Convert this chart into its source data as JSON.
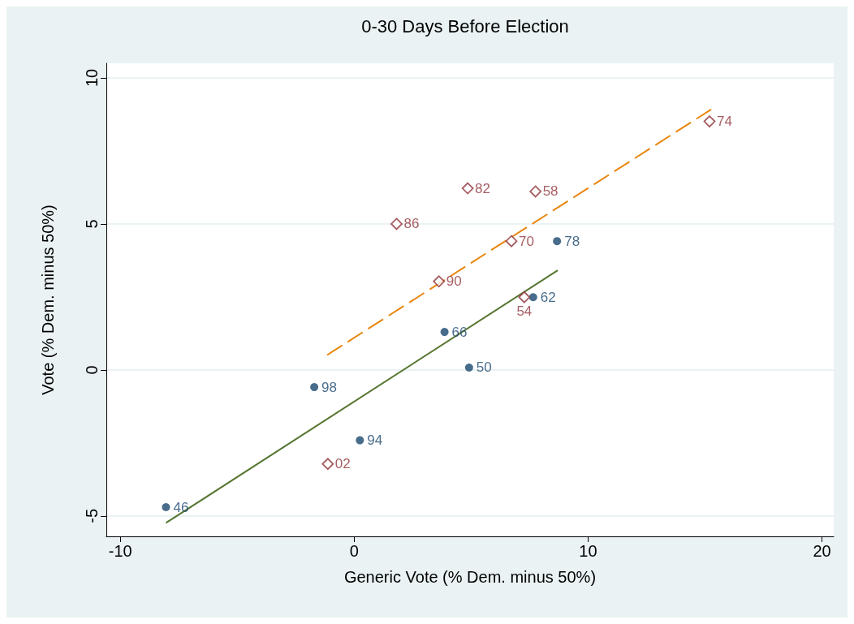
{
  "chart_data": {
    "type": "scatter",
    "title": "0-30 Days Before Election",
    "xlabel": "Generic Vote (% Dem. minus 50%)",
    "ylabel": "Vote (% Dem. minus 50%)",
    "xlim": [
      -10.6,
      20.5
    ],
    "xticks": [
      -10,
      0,
      10,
      20
    ],
    "ylim": [
      -5.7,
      10.5
    ],
    "yticks": [
      -5,
      0,
      5,
      10
    ],
    "grid": "y",
    "series": [
      {
        "color": "#1a476f",
        "marker": "circle",
        "x": [
          -8.05,
          -1.71,
          0.24,
          3.86,
          4.91,
          8.67,
          7.65
        ],
        "values": [
          -4.7,
          -0.59,
          -2.41,
          1.3,
          0.08,
          4.41,
          2.49
        ]
      },
      {
        "color": "#90353b",
        "marker": "diamond",
        "x": [
          15.19,
          7.75,
          4.85,
          1.81,
          6.72,
          3.62,
          -1.13,
          7.27
        ],
        "values": [
          8.51,
          6.11,
          6.22,
          5.0,
          4.41,
          3.03,
          -3.22,
          2.49
        ]
      },
      {
        "type": "line",
        "color": "#e8850c",
        "line_style": "dashed",
        "x": [
          -1.16,
          15.26
        ],
        "values": [
          0.51,
          8.92
        ]
      },
      {
        "type": "line",
        "color": "#55752f",
        "line_style": "solid",
        "x": [
          -8.05,
          8.7
        ],
        "values": [
          -5.24,
          3.41
        ]
      }
    ],
    "annotations": [
      {
        "text": "46",
        "x": -8.05,
        "y": -4.7
      },
      {
        "text": "98",
        "x": -1.71,
        "y": -0.59
      },
      {
        "text": "94",
        "x": 0.24,
        "y": -2.41
      },
      {
        "text": "66",
        "x": 3.86,
        "y": 1.3
      },
      {
        "text": "50",
        "x": 4.91,
        "y": 0.08
      },
      {
        "text": "78",
        "x": 8.67,
        "y": 4.41
      },
      {
        "text": "62",
        "x": 7.65,
        "y": 2.49
      },
      {
        "text": "74",
        "x": 15.19,
        "y": 8.51
      },
      {
        "text": "58",
        "x": 7.75,
        "y": 6.11
      },
      {
        "text": "82",
        "x": 4.85,
        "y": 6.22
      },
      {
        "text": "86",
        "x": 1.81,
        "y": 5.0
      },
      {
        "text": "70",
        "x": 6.72,
        "y": 4.41
      },
      {
        "text": "90",
        "x": 3.62,
        "y": 3.03
      },
      {
        "text": "02",
        "x": -1.13,
        "y": -3.22
      },
      {
        "text": "54",
        "x": 7.27,
        "y": 2.49
      }
    ]
  }
}
